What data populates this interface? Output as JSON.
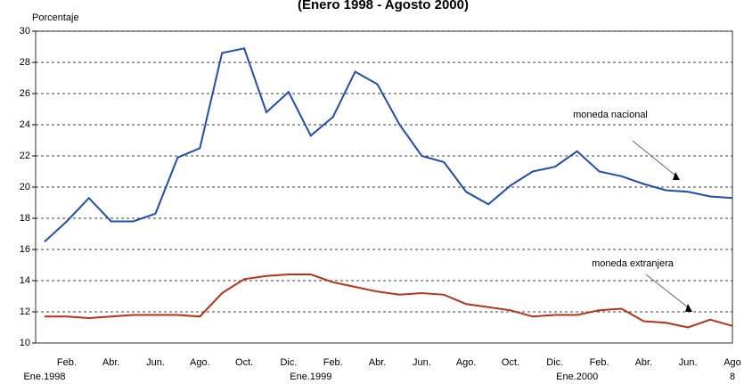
{
  "chart_data": {
    "type": "line",
    "title": "(Enero 1998 - Agosto 2000)",
    "y_label": "Porcentaje",
    "categories": [
      "Ene.1998",
      "Feb.",
      null,
      "Abr.",
      null,
      "Jun.",
      null,
      "Ago.",
      null,
      "Oct.",
      null,
      "Dic.",
      "Ene.1999",
      "Feb.",
      null,
      "Abr.",
      null,
      "Jun.",
      null,
      "Ago.",
      null,
      "Oct.",
      null,
      "Dic.",
      "Ene.2000",
      "Feb.",
      null,
      "Abr.",
      null,
      "Jun.",
      null,
      "Ago"
    ],
    "second_row_labels": [
      {
        "index": 31,
        "label": "8"
      }
    ],
    "series": [
      {
        "name": "moneda nacional",
        "color": "#1f4db5",
        "values": [
          16.5,
          17.8,
          19.3,
          17.8,
          17.8,
          18.3,
          21.9,
          22.5,
          28.6,
          28.9,
          24.8,
          26.1,
          23.3,
          24.5,
          27.4,
          26.6,
          24.0,
          22.0,
          21.6,
          19.7,
          18.9,
          20.1,
          21.0,
          21.3,
          22.3,
          21.0,
          20.7,
          20.2,
          19.8,
          19.7,
          19.4,
          19.3
        ]
      },
      {
        "name": "moneda extranjera",
        "color": "#b83214",
        "values": [
          11.7,
          11.7,
          11.6,
          11.7,
          11.8,
          11.8,
          11.8,
          11.7,
          13.2,
          14.1,
          14.3,
          14.4,
          14.4,
          13.9,
          13.6,
          13.3,
          13.1,
          13.2,
          13.1,
          12.5,
          12.3,
          12.1,
          11.7,
          11.8,
          11.8,
          12.1,
          12.2,
          11.4,
          11.3,
          11.0,
          11.5,
          11.1
        ]
      }
    ],
    "ylim": [
      10,
      30
    ],
    "yticks": [
      10,
      12,
      14,
      16,
      18,
      20,
      22,
      24,
      26,
      28,
      30
    ],
    "grid": true
  }
}
